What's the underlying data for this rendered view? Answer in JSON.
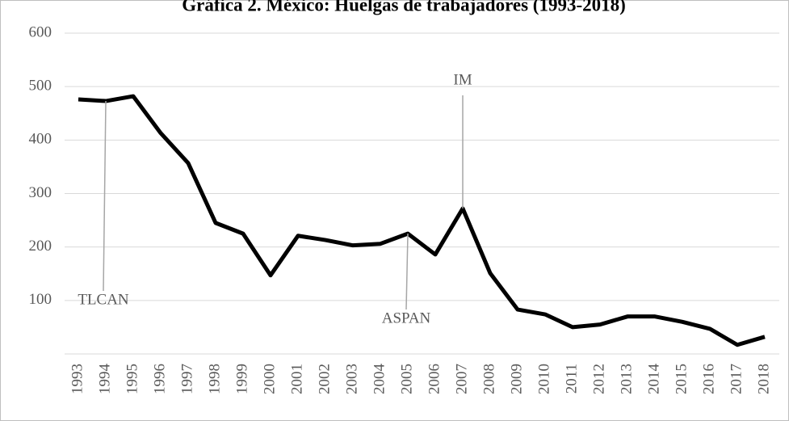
{
  "chart_data": {
    "type": "line",
    "title": "Gráfica 2. México: Huelgas de trabajadores (1993-2018)",
    "categories": [
      "1993",
      "1994",
      "1995",
      "1996",
      "1997",
      "1998",
      "1999",
      "2000",
      "2001",
      "2002",
      "2003",
      "2004",
      "2005",
      "2006",
      "2007",
      "2008",
      "2009",
      "2010",
      "2011",
      "2012",
      "2013",
      "2014",
      "2015",
      "2016",
      "2017",
      "2018"
    ],
    "series": [
      {
        "name": "Huelgas",
        "color": "#000000",
        "values": [
          476,
          473,
          482,
          413,
          357,
          245,
          225,
          147,
          221,
          213,
          203,
          206,
          225,
          186,
          272,
          151,
          83,
          74,
          50,
          55,
          70,
          70,
          60,
          47,
          17,
          32
        ]
      }
    ],
    "ylim": [
      0,
      600
    ],
    "yticks": [
      100,
      200,
      300,
      400,
      500,
      600
    ],
    "grid": true,
    "annotations": [
      {
        "text": "TLCAN",
        "x": "1994",
        "side": "below"
      },
      {
        "text": "ASPAN",
        "x": "2005",
        "side": "below"
      },
      {
        "text": "IM",
        "x": "2007",
        "side": "above"
      }
    ]
  }
}
